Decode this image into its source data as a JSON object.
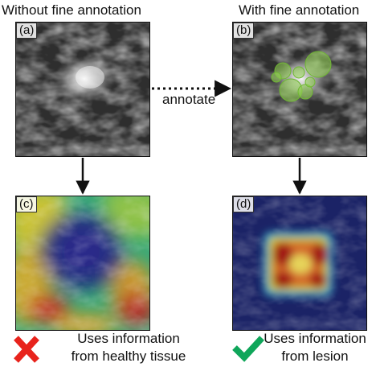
{
  "headers": {
    "left": "Without fine annotation",
    "right": "With fine annotation"
  },
  "panels": {
    "a": "(a)",
    "b": "(b)",
    "c": "(c)",
    "d": "(d)"
  },
  "arrow_label": "annotate",
  "captions": {
    "left": {
      "line1": "Uses information",
      "line2": "from healthy tissue",
      "icon": "cross-icon"
    },
    "right": {
      "line1": "Uses information",
      "line2": "from lesion",
      "icon": "check-icon"
    }
  },
  "colors": {
    "cross": "#e8231c",
    "check": "#0fa65a",
    "annotation": "#7cc83c"
  }
}
